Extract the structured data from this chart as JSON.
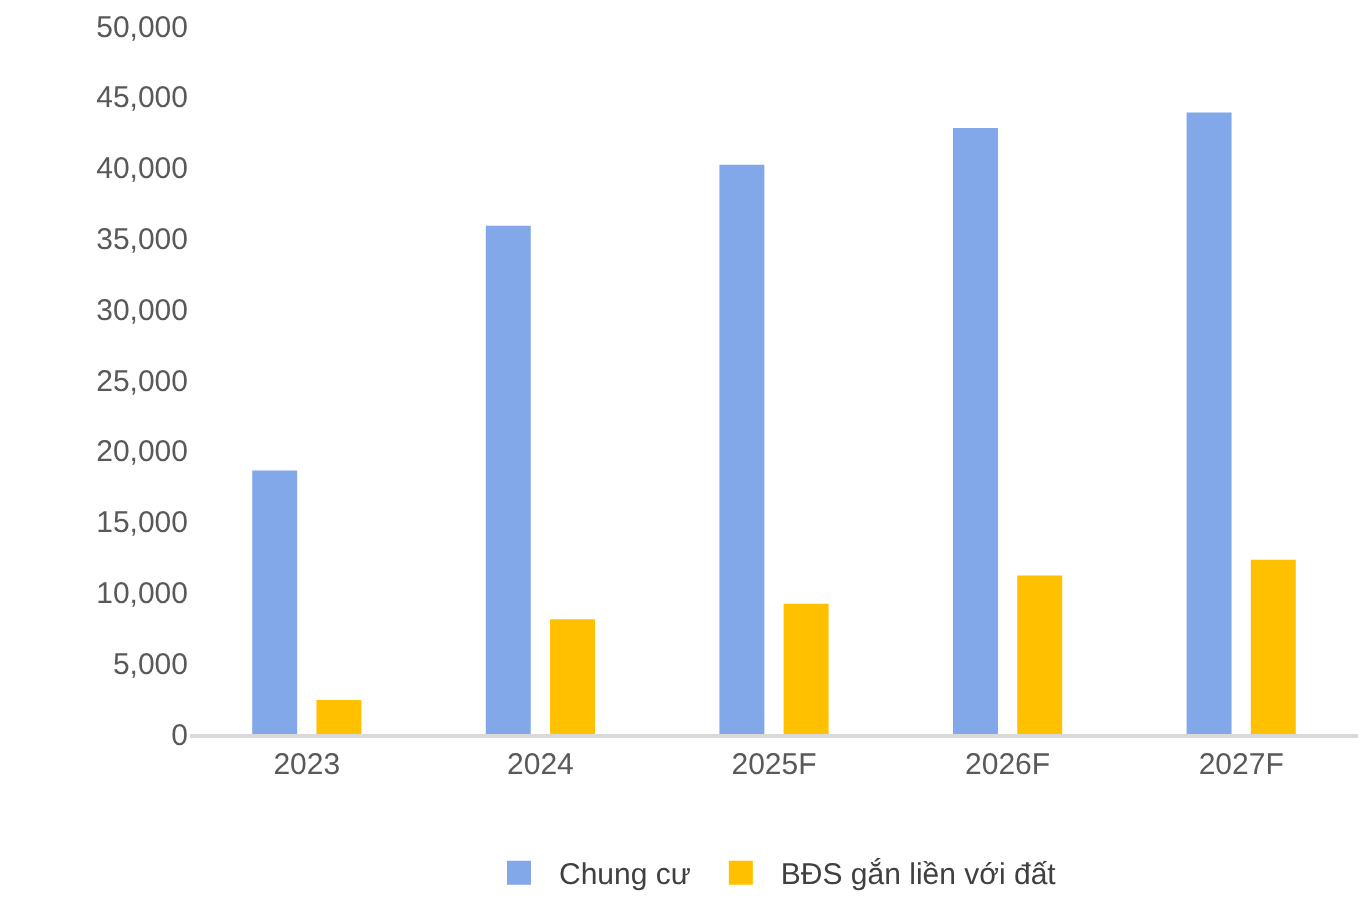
{
  "chart_data": {
    "type": "bar",
    "categories": [
      "2023",
      "2024",
      "2025F",
      "2026F",
      "2027F"
    ],
    "series": [
      {
        "name": "Chung cư",
        "color": "#83a8e9",
        "values": [
          18600,
          35900,
          40200,
          42800,
          43900
        ]
      },
      {
        "name": "BĐS gắn liền với đất",
        "color": "#ffc000",
        "values": [
          2400,
          8100,
          9200,
          11200,
          12300
        ]
      }
    ],
    "ylim": [
      0,
      50000
    ],
    "yticks": [
      {
        "value": 0,
        "label": "0"
      },
      {
        "value": 5000,
        "label": "5,000"
      },
      {
        "value": 10000,
        "label": "10,000"
      },
      {
        "value": 15000,
        "label": "15,000"
      },
      {
        "value": 20000,
        "label": "20,000"
      },
      {
        "value": 25000,
        "label": "25,000"
      },
      {
        "value": 30000,
        "label": "30,000"
      },
      {
        "value": 35000,
        "label": "35,000"
      },
      {
        "value": 40000,
        "label": "40,000"
      },
      {
        "value": 45000,
        "label": "45,000"
      },
      {
        "value": 50000,
        "label": "50,000"
      }
    ],
    "legend": "bottom"
  }
}
